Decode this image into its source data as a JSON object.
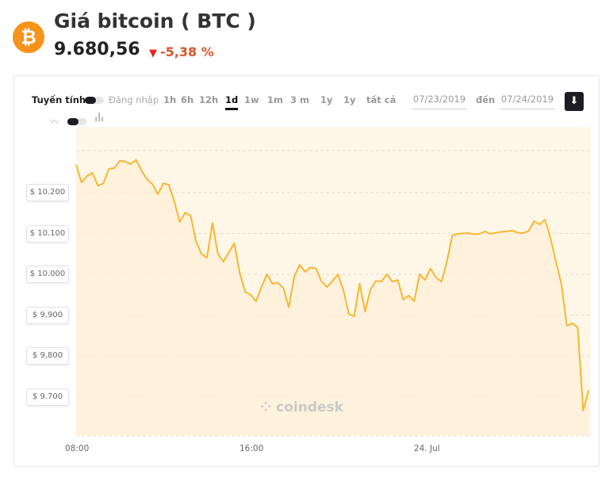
{
  "header": {
    "title": "Giá bitcoin ( BTC )",
    "price": "9.680,56",
    "change": "-5,38 %",
    "change_direction": "down",
    "logo_icon": "bitcoin-icon",
    "logo_symbol": "₿"
  },
  "toolbar": {
    "scale_label": "Tuyến tính",
    "login_label": "Đăng nhập",
    "ranges": [
      "1h",
      "6h",
      "12h",
      "1d",
      "1w",
      "1m",
      "3 m",
      "1y",
      "1y",
      "tất cả"
    ],
    "active_range": "1d",
    "date_from": "07/23/2019",
    "to_label": "đến",
    "date_to": "07/24/2019",
    "download_icon": "download-icon"
  },
  "colors": {
    "line": "#f7b731",
    "fill": "#fef7e8",
    "brand": "#f7931a",
    "down": "#e8261c"
  },
  "watermark": "coindesk",
  "chart_data": {
    "type": "area",
    "start": "2019-07-23 08:00",
    "interval_minutes": 15,
    "values": [
      10268,
      10225,
      10241,
      10248,
      10217,
      10223,
      10258,
      10260,
      10278,
      10276,
      10270,
      10280,
      10254,
      10233,
      10221,
      10196,
      10223,
      10219,
      10179,
      10128,
      10151,
      10144,
      10080,
      10050,
      10041,
      10126,
      10050,
      10031,
      10054,
      10076,
      10004,
      9957,
      9950,
      9934,
      9969,
      10000,
      9977,
      9979,
      9967,
      9919,
      9994,
      10023,
      10006,
      10017,
      10014,
      9983,
      9969,
      9983,
      10000,
      9963,
      9903,
      9897,
      9977,
      9909,
      9963,
      9984,
      9982,
      10000,
      9982,
      9986,
      9938,
      9948,
      9934,
      10000,
      9986,
      10014,
      9992,
      9982,
      10031,
      10095,
      10099,
      10100,
      10101,
      10098,
      10099,
      10105,
      10099,
      10102,
      10104,
      10105,
      10107,
      10102,
      10101,
      10106,
      10130,
      10122,
      10134,
      10089,
      10031,
      9977,
      9874,
      9880,
      9870,
      9666,
      9716
    ],
    "y_ticks": [
      {
        "value": 10200,
        "label": "$ 10.200"
      },
      {
        "value": 10100,
        "label": "$ 10.100"
      },
      {
        "value": 10000,
        "label": "$ 10.000"
      },
      {
        "value": 9900,
        "label": "$ 9,900"
      },
      {
        "value": 9800,
        "label": "$ 9,800"
      },
      {
        "value": 9700,
        "label": "$ 9.700"
      }
    ],
    "x_ticks": [
      {
        "hours": 0,
        "label": "08:00"
      },
      {
        "hours": 8,
        "label": "16:00"
      },
      {
        "hours": 16,
        "label": "24. Jul"
      }
    ],
    "ylim": [
      9605,
      10325
    ],
    "grid": true
  }
}
